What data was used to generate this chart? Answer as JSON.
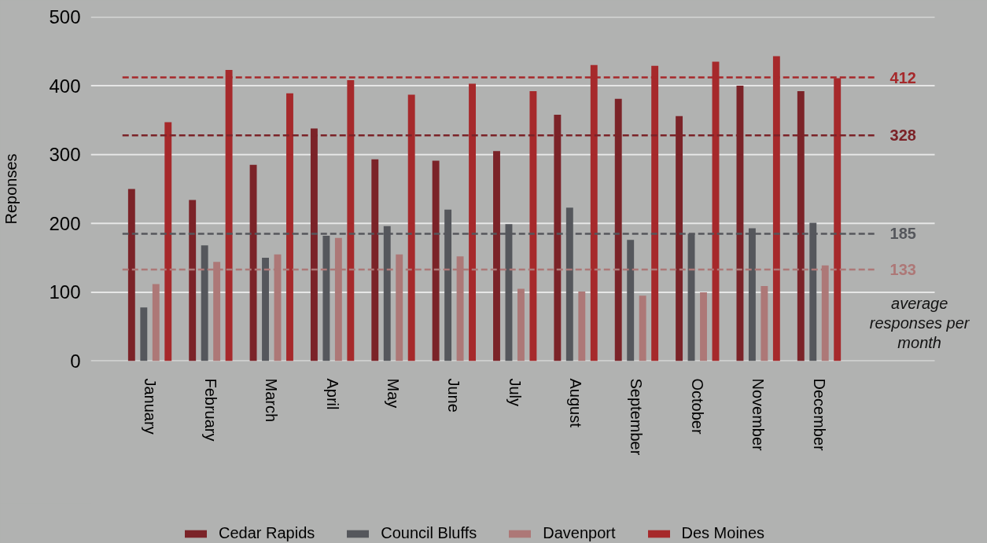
{
  "chart_data": {
    "type": "bar",
    "ylabel": "Reponses",
    "categories": [
      "January",
      "February",
      "March",
      "April",
      "May",
      "June",
      "July",
      "August",
      "September",
      "October",
      "November",
      "December"
    ],
    "series": [
      {
        "name": "Cedar Rapids",
        "color": "#7b2328",
        "values": [
          250,
          234,
          285,
          338,
          293,
          291,
          305,
          358,
          381,
          356,
          400,
          392
        ]
      },
      {
        "name": "Council Bluffs",
        "color": "#55575c",
        "values": [
          78,
          168,
          150,
          182,
          196,
          220,
          199,
          223,
          176,
          185,
          193,
          201
        ]
      },
      {
        "name": "Davenport",
        "color": "#ad7877",
        "values": [
          112,
          144,
          155,
          179,
          155,
          152,
          105,
          101,
          95,
          100,
          109,
          139
        ]
      },
      {
        "name": "Des Moines",
        "color": "#a6292b",
        "values": [
          347,
          423,
          389,
          408,
          387,
          403,
          392,
          430,
          429,
          435,
          443,
          411
        ]
      }
    ],
    "ylim": [
      0,
      500
    ],
    "yticks": [
      0,
      100,
      200,
      300,
      400,
      500
    ],
    "grid": "y",
    "legend": "bottom",
    "ref_lines": [
      {
        "axis": "y",
        "value": 412,
        "label": "412",
        "color": "#a6292b",
        "line_style": "dashed"
      },
      {
        "axis": "y",
        "value": 328,
        "label": "328",
        "color": "#7b2328",
        "line_style": "dashed"
      },
      {
        "axis": "y",
        "value": 185,
        "label": "185",
        "color": "#55575c",
        "line_style": "dashed"
      },
      {
        "axis": "y",
        "value": 133,
        "label": "133",
        "color": "#ad7877",
        "line_style": "dashed"
      }
    ],
    "annotations": [
      "average responses per month"
    ]
  }
}
